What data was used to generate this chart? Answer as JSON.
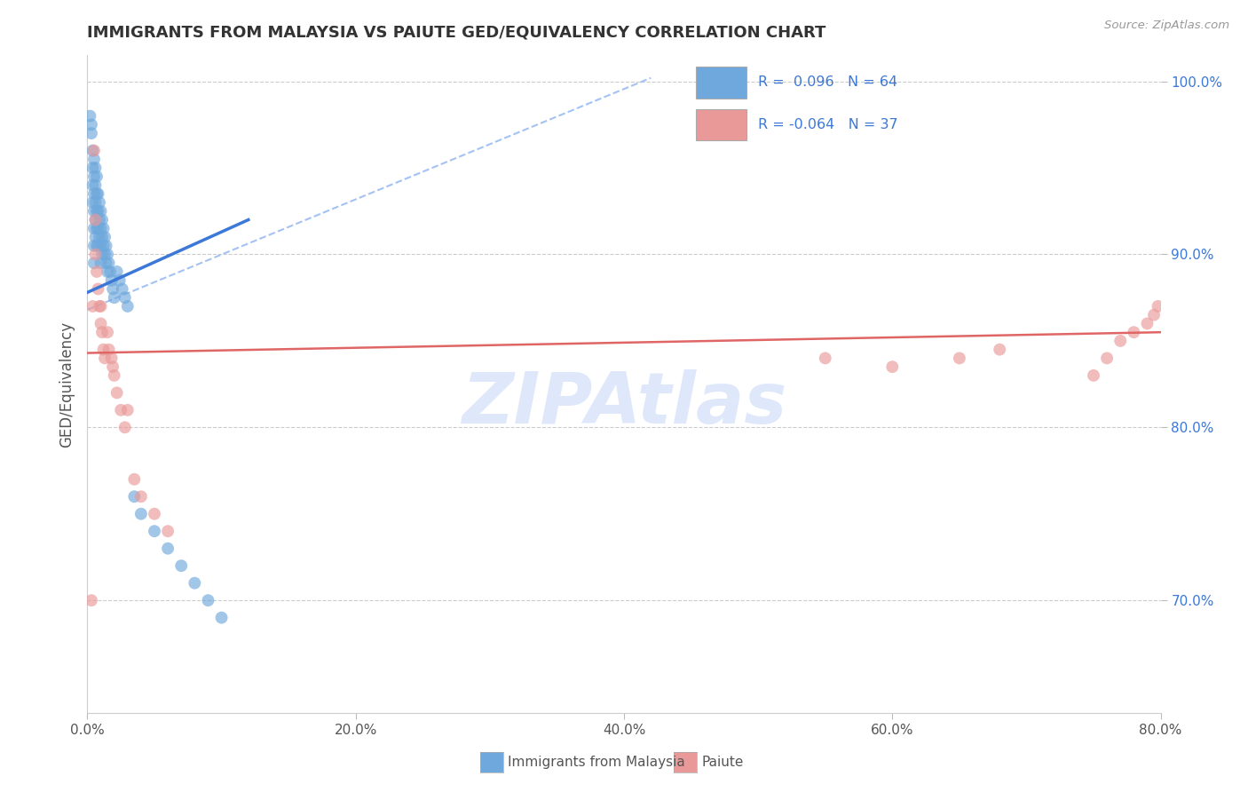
{
  "title": "IMMIGRANTS FROM MALAYSIA VS PAIUTE GED/EQUIVALENCY CORRELATION CHART",
  "source": "Source: ZipAtlas.com",
  "ylabel": "GED/Equivalency",
  "legend_label1": "Immigrants from Malaysia",
  "legend_label2": "Paiute",
  "r1": 0.096,
  "n1": 64,
  "r2": -0.064,
  "n2": 37,
  "xlim": [
    0.0,
    0.8
  ],
  "ylim": [
    0.635,
    1.015
  ],
  "yticks": [
    0.7,
    0.8,
    0.9,
    1.0
  ],
  "ytick_labels": [
    "70.0%",
    "80.0%",
    "90.0%",
    "100.0%"
  ],
  "xticks": [
    0.0,
    0.2,
    0.4,
    0.6,
    0.8
  ],
  "xtick_labels": [
    "0.0%",
    "20.0%",
    "40.0%",
    "60.0%",
    "80.0%"
  ],
  "color_blue": "#6fa8dc",
  "color_pink": "#ea9999",
  "color_trend_blue": "#3c78d8",
  "color_trend_pink": "#e06666",
  "color_dashed": "#a4c2f4",
  "watermark": "ZIPAtlas",
  "watermark_color": "#c9daf8",
  "blue_scatter_x": [
    0.002,
    0.003,
    0.003,
    0.004,
    0.004,
    0.004,
    0.004,
    0.005,
    0.005,
    0.005,
    0.005,
    0.005,
    0.005,
    0.005,
    0.006,
    0.006,
    0.006,
    0.006,
    0.006,
    0.007,
    0.007,
    0.007,
    0.007,
    0.007,
    0.008,
    0.008,
    0.008,
    0.008,
    0.009,
    0.009,
    0.009,
    0.01,
    0.01,
    0.01,
    0.01,
    0.011,
    0.011,
    0.011,
    0.012,
    0.012,
    0.013,
    0.013,
    0.014,
    0.014,
    0.015,
    0.015,
    0.016,
    0.017,
    0.018,
    0.019,
    0.02,
    0.022,
    0.024,
    0.026,
    0.028,
    0.03,
    0.035,
    0.04,
    0.05,
    0.06,
    0.07,
    0.08,
    0.09,
    0.1
  ],
  "blue_scatter_y": [
    0.98,
    0.975,
    0.97,
    0.96,
    0.95,
    0.94,
    0.93,
    0.955,
    0.945,
    0.935,
    0.925,
    0.915,
    0.905,
    0.895,
    0.95,
    0.94,
    0.93,
    0.92,
    0.91,
    0.945,
    0.935,
    0.925,
    0.915,
    0.905,
    0.935,
    0.925,
    0.915,
    0.905,
    0.93,
    0.92,
    0.91,
    0.925,
    0.915,
    0.905,
    0.895,
    0.92,
    0.91,
    0.9,
    0.915,
    0.905,
    0.91,
    0.9,
    0.905,
    0.895,
    0.9,
    0.89,
    0.895,
    0.89,
    0.885,
    0.88,
    0.875,
    0.89,
    0.885,
    0.88,
    0.875,
    0.87,
    0.76,
    0.75,
    0.74,
    0.73,
    0.72,
    0.71,
    0.7,
    0.69
  ],
  "pink_scatter_x": [
    0.003,
    0.004,
    0.005,
    0.006,
    0.006,
    0.007,
    0.008,
    0.009,
    0.01,
    0.01,
    0.011,
    0.012,
    0.013,
    0.015,
    0.016,
    0.018,
    0.019,
    0.02,
    0.022,
    0.025,
    0.028,
    0.03,
    0.035,
    0.04,
    0.05,
    0.06,
    0.55,
    0.6,
    0.65,
    0.68,
    0.75,
    0.76,
    0.77,
    0.78,
    0.79,
    0.795,
    0.798
  ],
  "pink_scatter_y": [
    0.7,
    0.87,
    0.96,
    0.92,
    0.9,
    0.89,
    0.88,
    0.87,
    0.87,
    0.86,
    0.855,
    0.845,
    0.84,
    0.855,
    0.845,
    0.84,
    0.835,
    0.83,
    0.82,
    0.81,
    0.8,
    0.81,
    0.77,
    0.76,
    0.75,
    0.74,
    0.84,
    0.835,
    0.84,
    0.845,
    0.83,
    0.84,
    0.85,
    0.855,
    0.86,
    0.865,
    0.87
  ]
}
